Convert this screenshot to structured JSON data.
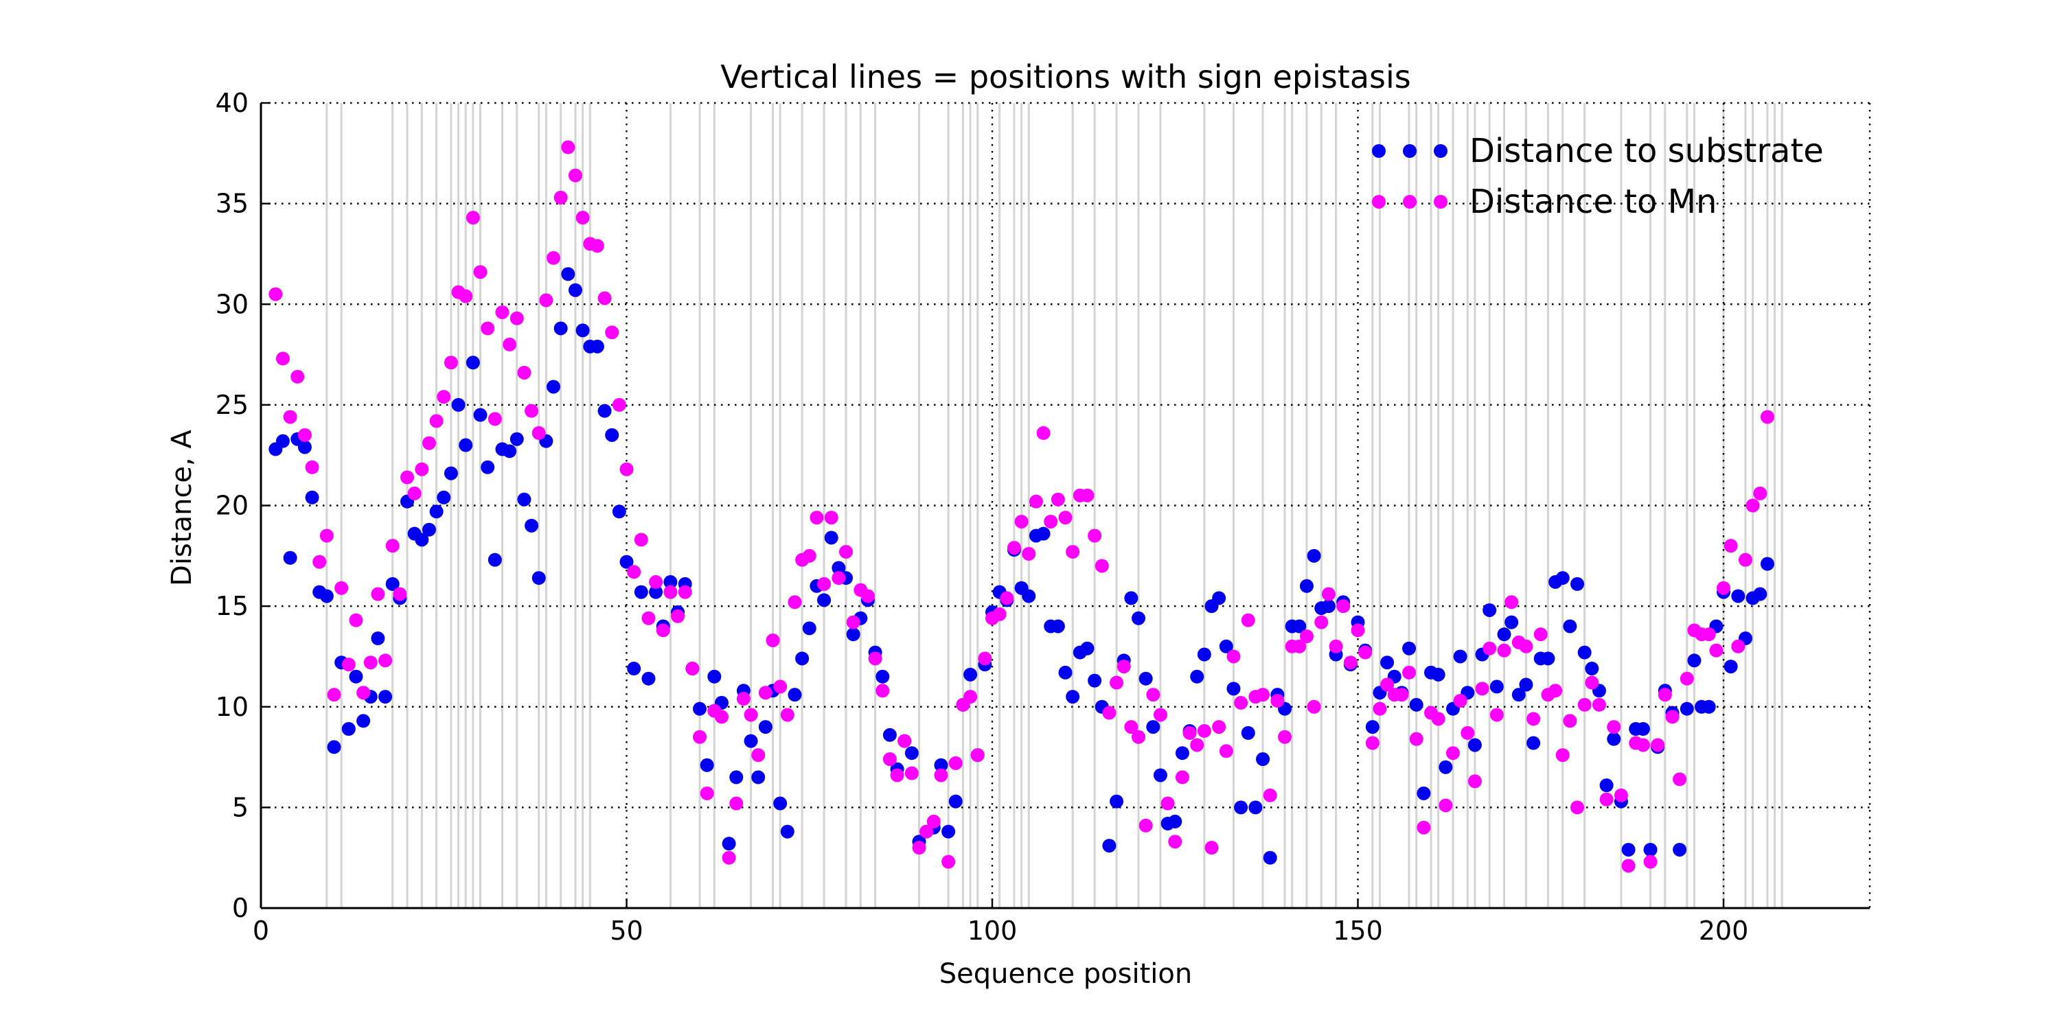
{
  "chart_data": {
    "type": "scatter",
    "title": "Vertical lines = positions with sign epistasis",
    "xlabel": "Sequence position",
    "ylabel": "Distance, A",
    "xlim": [
      0,
      220
    ],
    "ylim": [
      0,
      40
    ],
    "xticks": [
      0,
      50,
      100,
      150,
      200
    ],
    "yticks": [
      0,
      5,
      10,
      15,
      20,
      25,
      30,
      35,
      40
    ],
    "grid": "dotted",
    "legend_position": "top-right",
    "epistasis_positions": [
      9,
      11,
      18,
      20,
      22,
      24,
      26,
      27,
      28,
      29,
      30,
      33,
      35,
      38,
      39,
      41,
      43,
      44,
      45,
      56,
      60,
      62,
      67,
      70,
      71,
      74,
      77,
      80,
      82,
      84,
      90,
      94,
      96,
      97,
      98,
      101,
      103,
      104,
      105,
      111,
      114,
      117,
      120,
      123,
      129,
      133,
      137,
      140,
      141,
      143,
      145,
      147,
      152,
      153,
      157,
      158,
      160,
      161,
      163,
      165,
      166,
      168,
      170,
      173,
      176,
      178,
      181,
      186,
      190,
      192,
      195,
      196,
      200,
      203,
      204,
      206,
      207,
      208
    ],
    "series": [
      {
        "name": "Distance to substrate",
        "color": "#0000ee",
        "x": [
          2,
          3,
          4,
          5,
          6,
          7,
          8,
          9,
          10,
          11,
          12,
          13,
          14,
          15,
          16,
          17,
          18,
          19,
          20,
          21,
          22,
          23,
          24,
          25,
          26,
          27,
          28,
          29,
          30,
          31,
          32,
          33,
          34,
          35,
          36,
          37,
          38,
          39,
          40,
          41,
          42,
          43,
          44,
          45,
          46,
          47,
          48,
          49,
          50,
          51,
          52,
          53,
          54,
          55,
          56,
          57,
          58,
          59,
          60,
          61,
          62,
          63,
          64,
          65,
          66,
          67,
          68,
          69,
          70,
          71,
          72,
          73,
          74,
          75,
          76,
          77,
          78,
          79,
          80,
          81,
          82,
          83,
          84,
          85,
          86,
          87,
          88,
          89,
          90,
          91,
          92,
          93,
          94,
          95,
          96,
          97,
          98,
          99,
          100,
          101,
          102,
          103,
          104,
          105,
          106,
          107,
          108,
          109,
          110,
          111,
          112,
          113,
          114,
          115,
          116,
          117,
          118,
          119,
          120,
          121,
          122,
          123,
          124,
          125,
          126,
          127,
          128,
          129,
          130,
          131,
          132,
          133,
          134,
          135,
          136,
          137,
          138,
          139,
          140,
          141,
          142,
          143,
          144,
          145,
          146,
          147,
          148,
          149,
          150,
          151,
          152,
          153,
          154,
          155,
          156,
          157,
          158,
          159,
          160,
          161,
          162,
          163,
          164,
          165,
          166,
          167,
          168,
          169,
          170,
          171,
          172,
          173,
          174,
          175,
          176,
          177,
          178,
          179,
          180,
          181,
          182,
          183,
          184,
          185,
          186,
          187,
          188,
          189,
          190,
          191,
          192,
          193,
          194,
          195,
          196,
          197,
          198,
          199,
          200,
          201,
          202,
          203,
          204,
          205,
          206
        ],
        "y": [
          22.8,
          23.2,
          17.4,
          23.3,
          22.9,
          20.4,
          15.7,
          15.5,
          8.0,
          12.2,
          8.9,
          11.5,
          9.3,
          10.5,
          13.4,
          10.5,
          16.1,
          15.4,
          20.2,
          18.6,
          18.3,
          18.8,
          19.7,
          20.4,
          21.6,
          25.0,
          23.0,
          27.1,
          24.5,
          21.9,
          17.3,
          22.8,
          22.7,
          23.3,
          20.3,
          19.0,
          16.4,
          23.2,
          25.9,
          28.8,
          31.5,
          30.7,
          28.7,
          27.9,
          27.9,
          24.7,
          23.5,
          19.7,
          17.2,
          11.9,
          15.7,
          11.4,
          15.7,
          14.0,
          16.2,
          14.7,
          16.1,
          11.9,
          9.9,
          7.1,
          11.5,
          10.2,
          3.2,
          6.5,
          10.8,
          8.3,
          6.5,
          9.0,
          10.8,
          5.2,
          3.8,
          10.6,
          12.4,
          13.9,
          16.0,
          15.3,
          18.4,
          16.9,
          16.4,
          13.6,
          14.4,
          15.3,
          12.7,
          11.5,
          8.6,
          6.9,
          8.3,
          7.7,
          3.3,
          3.8,
          4.0,
          7.1,
          3.8,
          5.3,
          10.1,
          11.6,
          7.6,
          12.1,
          14.7,
          15.7,
          15.3,
          17.8,
          15.9,
          15.5,
          18.5,
          18.6,
          14.0,
          14.0,
          11.7,
          10.5,
          12.7,
          12.9,
          11.3,
          10.0,
          3.1,
          5.3,
          12.3,
          15.4,
          14.4,
          11.4,
          9.0,
          6.6,
          4.2,
          4.3,
          7.7,
          8.8,
          11.5,
          12.6,
          15.0,
          15.4,
          13.0,
          10.9,
          5.0,
          8.7,
          5.0,
          7.4,
          2.5,
          10.6,
          9.9,
          14.0,
          14.0,
          16.0,
          17.5,
          14.9,
          15.0,
          12.6,
          15.2,
          12.1,
          14.2,
          12.8,
          9.0,
          10.7,
          12.2,
          11.5,
          10.7,
          12.9,
          10.1,
          5.7,
          11.7,
          11.6,
          7.0,
          9.9,
          12.5,
          10.7,
          8.1,
          12.6,
          14.8,
          11.0,
          13.6,
          14.2,
          10.6,
          11.1,
          8.2,
          12.4,
          12.4,
          16.2,
          16.4,
          14.0,
          16.1,
          12.7,
          11.9,
          10.8,
          6.1,
          8.4,
          5.3,
          2.9,
          8.9,
          8.9,
          2.9,
          8.0,
          10.8,
          9.7,
          2.9,
          9.9,
          12.3,
          10.0,
          10.0,
          14.0,
          15.7,
          12.0,
          15.5,
          13.4,
          15.4,
          15.6,
          17.1
        ]
      },
      {
        "name": "Distance to Mn",
        "color": "#ff00ff",
        "x": [
          2,
          3,
          4,
          5,
          6,
          7,
          8,
          9,
          10,
          11,
          12,
          13,
          14,
          15,
          16,
          17,
          18,
          19,
          20,
          21,
          22,
          23,
          24,
          25,
          26,
          27,
          28,
          29,
          30,
          31,
          32,
          33,
          34,
          35,
          36,
          37,
          38,
          39,
          40,
          41,
          42,
          43,
          44,
          45,
          46,
          47,
          48,
          49,
          50,
          51,
          52,
          53,
          54,
          55,
          56,
          57,
          58,
          59,
          60,
          61,
          62,
          63,
          64,
          65,
          66,
          67,
          68,
          69,
          70,
          71,
          72,
          73,
          74,
          75,
          76,
          77,
          78,
          79,
          80,
          81,
          82,
          83,
          84,
          85,
          86,
          87,
          88,
          89,
          90,
          91,
          92,
          93,
          94,
          95,
          96,
          97,
          98,
          99,
          100,
          101,
          102,
          103,
          104,
          105,
          106,
          107,
          108,
          109,
          110,
          111,
          112,
          113,
          114,
          115,
          116,
          117,
          118,
          119,
          120,
          121,
          122,
          123,
          124,
          125,
          126,
          127,
          128,
          129,
          130,
          131,
          132,
          133,
          134,
          135,
          136,
          137,
          138,
          139,
          140,
          141,
          142,
          143,
          144,
          145,
          146,
          147,
          148,
          149,
          150,
          151,
          152,
          153,
          154,
          155,
          156,
          157,
          158,
          159,
          160,
          161,
          162,
          163,
          164,
          165,
          166,
          167,
          168,
          169,
          170,
          171,
          172,
          173,
          174,
          175,
          176,
          177,
          178,
          179,
          180,
          181,
          182,
          183,
          184,
          185,
          186,
          187,
          188,
          189,
          190,
          191,
          192,
          193,
          194,
          195,
          196,
          197,
          198,
          199,
          200,
          201,
          202,
          203,
          204,
          205,
          206
        ],
        "y": [
          30.5,
          27.3,
          24.4,
          26.4,
          23.5,
          21.9,
          17.2,
          18.5,
          10.6,
          15.9,
          12.1,
          14.3,
          10.7,
          12.2,
          15.6,
          12.3,
          18.0,
          15.6,
          21.4,
          20.6,
          21.8,
          23.1,
          24.2,
          25.4,
          27.1,
          30.6,
          30.4,
          34.3,
          31.6,
          28.8,
          24.3,
          29.6,
          28.0,
          29.3,
          26.6,
          24.7,
          23.6,
          30.2,
          32.3,
          35.3,
          37.8,
          36.4,
          34.3,
          33.0,
          32.9,
          30.3,
          28.6,
          25.0,
          21.8,
          16.7,
          18.3,
          14.4,
          16.2,
          13.8,
          15.7,
          14.5,
          15.7,
          11.9,
          8.5,
          5.7,
          9.8,
          9.5,
          2.5,
          5.2,
          10.4,
          9.6,
          7.6,
          10.7,
          13.3,
          11.0,
          9.6,
          15.2,
          17.3,
          17.5,
          19.4,
          16.1,
          19.4,
          16.4,
          17.7,
          14.2,
          15.8,
          15.5,
          12.4,
          10.8,
          7.4,
          6.6,
          8.3,
          6.7,
          3.0,
          3.8,
          4.3,
          6.6,
          2.3,
          7.2,
          10.1,
          10.5,
          7.6,
          12.4,
          14.4,
          14.6,
          15.4,
          17.9,
          19.2,
          17.6,
          20.2,
          23.6,
          19.2,
          20.3,
          19.4,
          17.7,
          20.5,
          20.5,
          18.5,
          17.0,
          9.7,
          11.2,
          12.0,
          9.0,
          8.5,
          4.1,
          10.6,
          9.6,
          5.2,
          3.3,
          6.5,
          8.7,
          8.1,
          8.8,
          3.0,
          9.0,
          7.8,
          12.5,
          10.2,
          14.3,
          10.5,
          10.6,
          5.6,
          10.3,
          8.5,
          13.0,
          13.0,
          13.5,
          10.0,
          14.2,
          15.6,
          13.0,
          15.0,
          12.2,
          13.8,
          12.7,
          8.2,
          9.9,
          11.1,
          10.6,
          10.6,
          11.7,
          8.4,
          4.0,
          9.7,
          9.4,
          5.1,
          7.7,
          10.3,
          8.7,
          6.3,
          10.9,
          12.9,
          9.6,
          12.8,
          15.2,
          13.2,
          13.0,
          9.4,
          13.6,
          10.6,
          10.8,
          7.6,
          9.3,
          5.0,
          10.1,
          11.2,
          10.1,
          5.4,
          9.0,
          5.6,
          2.1,
          8.2,
          8.1,
          2.3,
          8.1,
          10.6,
          9.5,
          6.4,
          11.4,
          13.8,
          13.6,
          13.6,
          12.8,
          15.9,
          18.0,
          13.0,
          17.3,
          20.0,
          20.6,
          24.4
        ]
      }
    ]
  }
}
